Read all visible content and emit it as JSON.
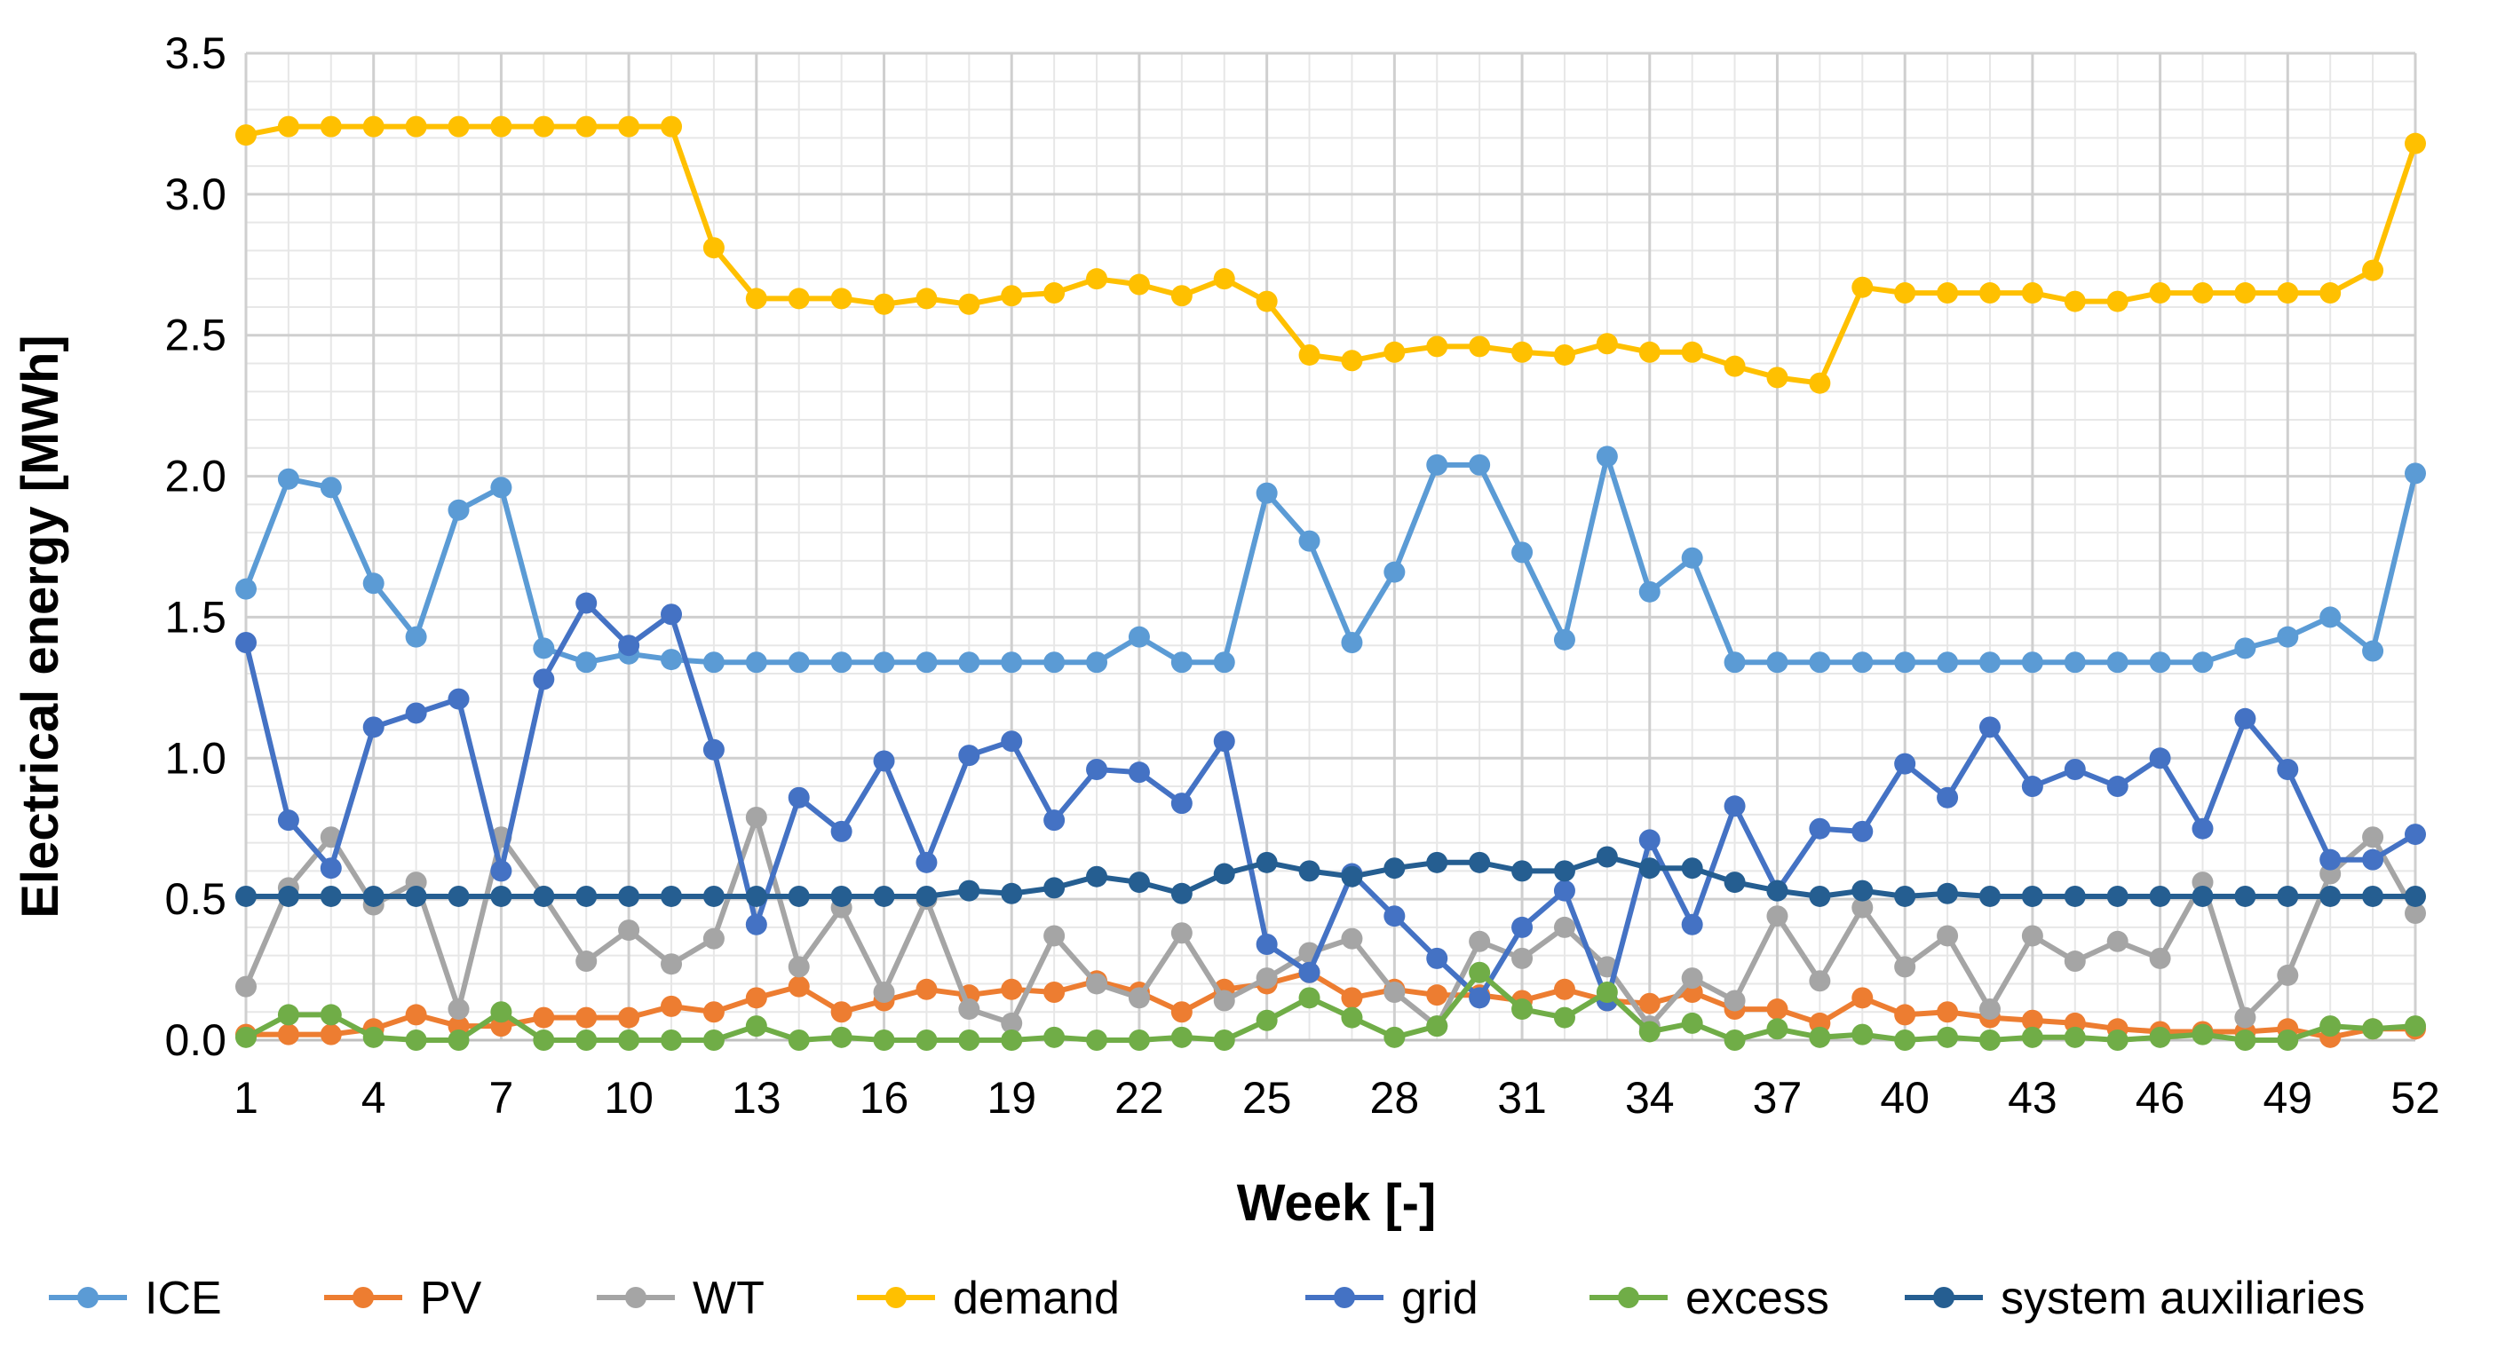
{
  "chart_data": {
    "type": "line",
    "title": "",
    "xlabel": "Week [-]",
    "ylabel": "Electrical energy [MWh]",
    "ylim": [
      0,
      3.5
    ],
    "ytick_step": 0.5,
    "y_tick_labels": [
      "0.0",
      "0.5",
      "1.0",
      "1.5",
      "2.0",
      "2.5",
      "3.0",
      "3.5"
    ],
    "xlim": [
      1,
      52
    ],
    "x_tick_labels": [
      "1",
      "4",
      "7",
      "10",
      "13",
      "16",
      "19",
      "22",
      "25",
      "28",
      "31",
      "34",
      "37",
      "40",
      "43",
      "46",
      "49",
      "52"
    ],
    "grid": true,
    "legend_position": "bottom",
    "x": [
      1,
      2,
      3,
      4,
      5,
      6,
      7,
      8,
      9,
      10,
      11,
      12,
      13,
      14,
      15,
      16,
      17,
      18,
      19,
      20,
      21,
      22,
      23,
      24,
      25,
      26,
      27,
      28,
      29,
      30,
      31,
      32,
      33,
      34,
      35,
      36,
      37,
      38,
      39,
      40,
      41,
      42,
      43,
      44,
      45,
      46,
      47,
      48,
      49,
      50,
      51,
      52
    ],
    "series": [
      {
        "name": "ICE",
        "color": "#5B9BD5",
        "values": [
          1.6,
          1.99,
          1.96,
          1.62,
          1.43,
          1.88,
          1.96,
          1.39,
          1.34,
          1.37,
          1.35,
          1.34,
          1.34,
          1.34,
          1.34,
          1.34,
          1.34,
          1.34,
          1.34,
          1.34,
          1.34,
          1.43,
          1.34,
          1.34,
          1.94,
          1.77,
          1.41,
          1.66,
          2.04,
          2.04,
          1.73,
          1.42,
          2.07,
          1.59,
          1.71,
          1.34,
          1.34,
          1.34,
          1.34,
          1.34,
          1.34,
          1.34,
          1.34,
          1.34,
          1.34,
          1.34,
          1.34,
          1.39,
          1.43,
          1.5,
          1.38,
          2.01
        ]
      },
      {
        "name": "PV",
        "color": "#ED7D31",
        "values": [
          0.02,
          0.02,
          0.02,
          0.04,
          0.09,
          0.05,
          0.05,
          0.08,
          0.08,
          0.08,
          0.12,
          0.1,
          0.15,
          0.19,
          0.1,
          0.14,
          0.18,
          0.16,
          0.18,
          0.17,
          0.21,
          0.17,
          0.1,
          0.18,
          0.2,
          0.24,
          0.15,
          0.18,
          0.16,
          0.16,
          0.14,
          0.18,
          0.14,
          0.13,
          0.17,
          0.11,
          0.11,
          0.06,
          0.15,
          0.09,
          0.1,
          0.08,
          0.07,
          0.06,
          0.04,
          0.03,
          0.03,
          0.03,
          0.04,
          0.01,
          0.04,
          0.04
        ]
      },
      {
        "name": "WT",
        "color": "#A5A5A5",
        "values": [
          0.19,
          0.54,
          0.72,
          0.48,
          0.56,
          0.11,
          0.72,
          0.51,
          0.28,
          0.39,
          0.27,
          0.36,
          0.79,
          0.26,
          0.47,
          0.17,
          0.5,
          0.11,
          0.06,
          0.37,
          0.2,
          0.15,
          0.38,
          0.14,
          0.22,
          0.31,
          0.36,
          0.17,
          0.05,
          0.35,
          0.29,
          0.4,
          0.26,
          0.05,
          0.22,
          0.14,
          0.44,
          0.21,
          0.47,
          0.26,
          0.37,
          0.11,
          0.37,
          0.28,
          0.35,
          0.29,
          0.56,
          0.08,
          0.23,
          0.59,
          0.72,
          0.45
        ]
      },
      {
        "name": "demand",
        "color": "#FFC000",
        "values": [
          3.21,
          3.24,
          3.24,
          3.24,
          3.24,
          3.24,
          3.24,
          3.24,
          3.24,
          3.24,
          3.24,
          2.81,
          2.63,
          2.63,
          2.63,
          2.61,
          2.63,
          2.61,
          2.64,
          2.65,
          2.7,
          2.68,
          2.64,
          2.7,
          2.62,
          2.43,
          2.41,
          2.44,
          2.46,
          2.46,
          2.44,
          2.43,
          2.47,
          2.44,
          2.44,
          2.39,
          2.35,
          2.33,
          2.67,
          2.65,
          2.65,
          2.65,
          2.65,
          2.62,
          2.62,
          2.65,
          2.65,
          2.65,
          2.65,
          2.65,
          2.73,
          3.18
        ]
      },
      {
        "name": "grid",
        "color": "#4472C4",
        "values": [
          1.41,
          0.78,
          0.61,
          1.11,
          1.16,
          1.21,
          0.6,
          1.28,
          1.55,
          1.4,
          1.51,
          1.03,
          0.41,
          0.86,
          0.74,
          0.99,
          0.63,
          1.01,
          1.06,
          0.78,
          0.96,
          0.95,
          0.84,
          1.06,
          0.34,
          0.24,
          0.59,
          0.44,
          0.29,
          0.15,
          0.4,
          0.53,
          0.14,
          0.71,
          0.41,
          0.83,
          0.53,
          0.75,
          0.74,
          0.98,
          0.86,
          1.11,
          0.9,
          0.96,
          0.9,
          1.0,
          0.75,
          1.14,
          0.96,
          0.64,
          0.64,
          0.73
        ]
      },
      {
        "name": "excess",
        "color": "#70AD47",
        "values": [
          0.01,
          0.09,
          0.09,
          0.01,
          0.0,
          0.0,
          0.1,
          0.0,
          0.0,
          0.0,
          0.0,
          0.0,
          0.05,
          0.0,
          0.01,
          0.0,
          0.0,
          0.0,
          0.0,
          0.01,
          0.0,
          0.0,
          0.01,
          0.0,
          0.07,
          0.15,
          0.08,
          0.01,
          0.05,
          0.24,
          0.11,
          0.08,
          0.17,
          0.03,
          0.06,
          0.0,
          0.04,
          0.01,
          0.02,
          0.0,
          0.01,
          0.0,
          0.01,
          0.01,
          0.0,
          0.01,
          0.02,
          0.0,
          0.0,
          0.05,
          0.04,
          0.05
        ]
      },
      {
        "name": "system auxiliaries",
        "color": "#255E91",
        "values": [
          0.51,
          0.51,
          0.51,
          0.51,
          0.51,
          0.51,
          0.51,
          0.51,
          0.51,
          0.51,
          0.51,
          0.51,
          0.51,
          0.51,
          0.51,
          0.51,
          0.51,
          0.53,
          0.52,
          0.54,
          0.58,
          0.56,
          0.52,
          0.59,
          0.63,
          0.6,
          0.58,
          0.61,
          0.63,
          0.63,
          0.6,
          0.6,
          0.65,
          0.61,
          0.61,
          0.56,
          0.53,
          0.51,
          0.53,
          0.51,
          0.52,
          0.51,
          0.51,
          0.51,
          0.51,
          0.51,
          0.51,
          0.51,
          0.51,
          0.51,
          0.51,
          0.51
        ]
      }
    ]
  }
}
